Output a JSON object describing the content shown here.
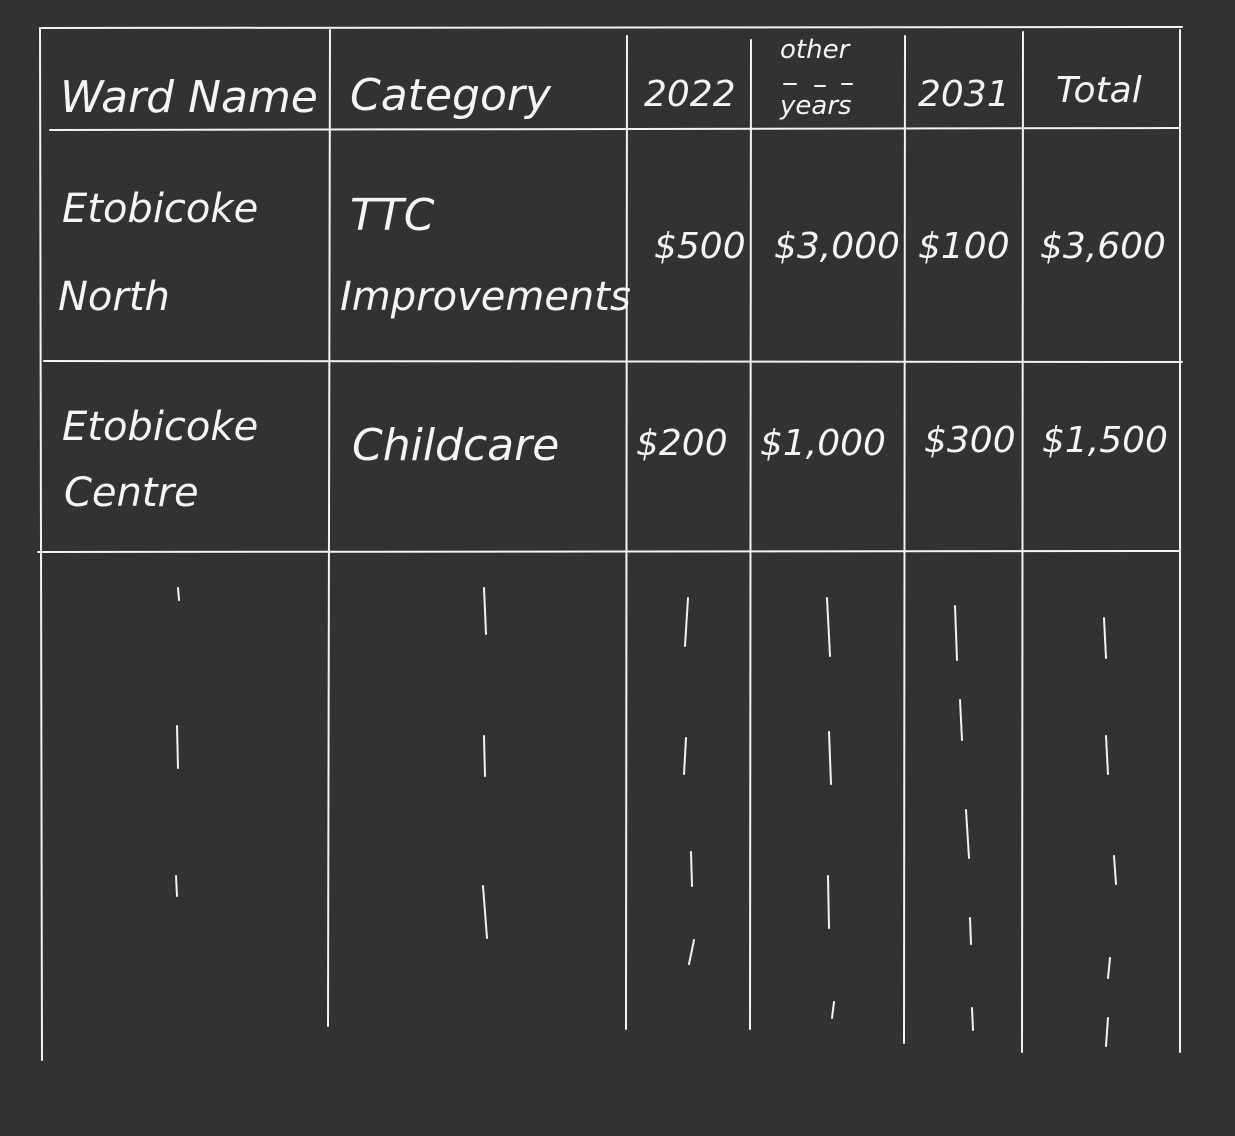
{
  "table": {
    "headers": {
      "ward_name": "Ward Name",
      "category": "Category",
      "y2022": "2022",
      "other_years_top": "other",
      "other_years_bottom": "years",
      "y2031": "2031",
      "total": "Total"
    },
    "rows": [
      {
        "ward_line1": "Etobicoke",
        "ward_line2": "North",
        "category_line1": "TTC",
        "category_line2": "Improvements",
        "y2022": "$500",
        "other_years": "$3,000",
        "y2031": "$100",
        "total": "$3,600"
      },
      {
        "ward_line1": "Etobicoke",
        "ward_line2": "Centre",
        "category_line1": "Childcare",
        "category_line2": "",
        "y2022": "$200",
        "other_years": "$1,000",
        "y2031": "$300",
        "total": "$1,500"
      }
    ]
  },
  "colors": {
    "background": "#323232",
    "ink": "#f2f2f2"
  }
}
